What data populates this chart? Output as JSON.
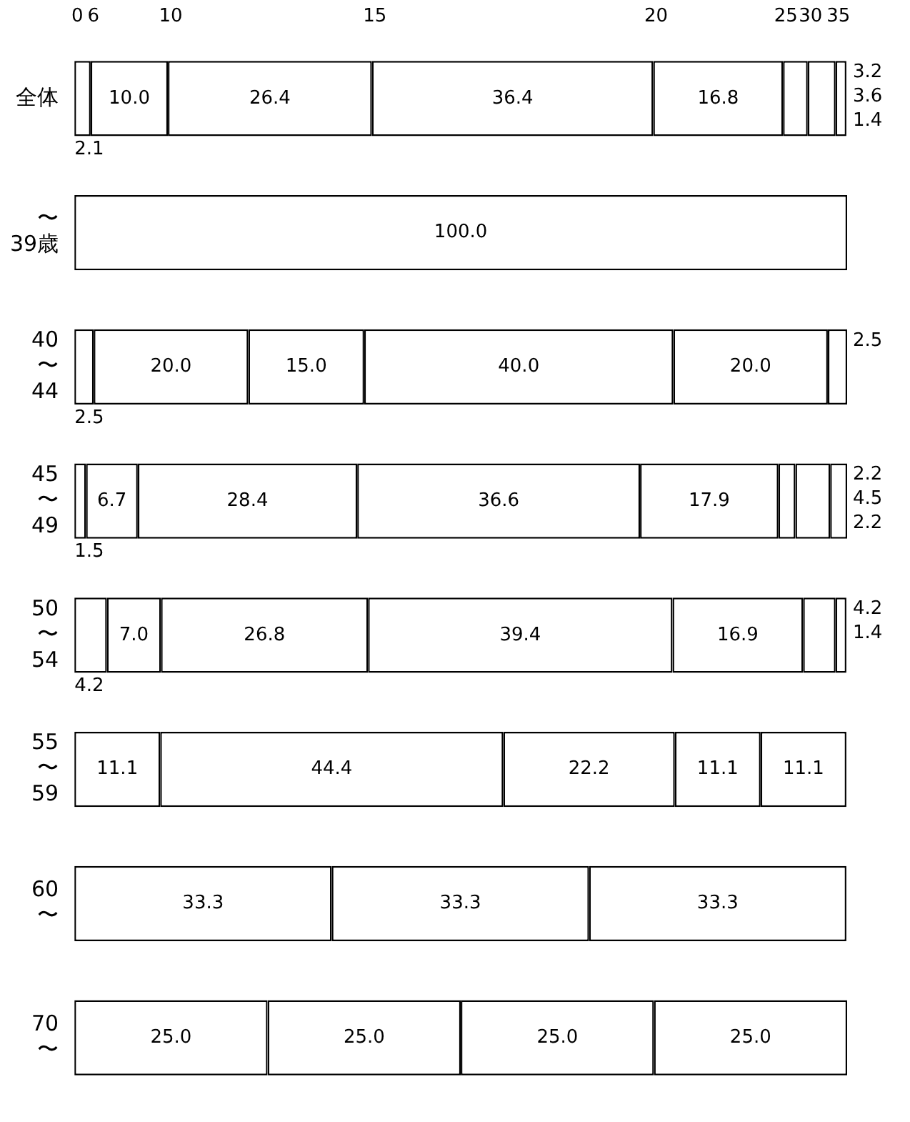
{
  "chart_data": {
    "type": "bar",
    "orientation": "horizontal",
    "stacked": true,
    "legend": "top",
    "tick_labels": "y",
    "xlim": [
      0,
      100
    ],
    "categories": [
      "全体",
      "〜39歳",
      "40〜44",
      "45〜49",
      "50〜54",
      "55〜59",
      "60〜",
      "70〜"
    ],
    "series": [
      {
        "name": "0",
        "color": "#ffffff",
        "values": [
          2.1,
          100,
          2.5,
          1.5,
          4.2,
          null,
          null,
          null
        ],
        "value_labels": [
          "2.1",
          "100.0",
          "2.5",
          "1.5",
          "4.2",
          null,
          null,
          null
        ]
      },
      {
        "name": "6",
        "color": "#ffffff",
        "values": [
          10,
          null,
          20,
          6.7,
          7,
          11.1,
          null,
          null
        ],
        "value_labels": [
          "10.0",
          null,
          "20.0",
          "6.7",
          "7.0",
          "11.1",
          null,
          null
        ]
      },
      {
        "name": "10",
        "color": "#ffffff",
        "values": [
          26.4,
          null,
          15,
          28.4,
          26.8,
          44.4,
          33.3,
          25
        ],
        "value_labels": [
          "26.4",
          null,
          "15.0",
          "28.4",
          "26.8",
          "44.4",
          "33.3",
          "25.0"
        ]
      },
      {
        "name": "15",
        "color": "#ffffff",
        "values": [
          36.4,
          null,
          40,
          36.6,
          39.4,
          22.2,
          33.3,
          25
        ],
        "value_labels": [
          "36.4",
          null,
          "40.0",
          "36.6",
          "39.4",
          "22.2",
          "33.3",
          "25.0"
        ]
      },
      {
        "name": "20",
        "color": "#ffffff",
        "values": [
          16.8,
          null,
          20,
          17.9,
          16.9,
          11.1,
          33.3,
          25
        ],
        "value_labels": [
          "16.8",
          null,
          "20.0",
          "17.9",
          "16.9",
          "11.1",
          "33.3",
          "25.0"
        ]
      },
      {
        "name": "25",
        "color": "#ffffff",
        "values": [
          3.2,
          null,
          2.5,
          2.2,
          4.2,
          11.1,
          null,
          25
        ],
        "value_labels": [
          "3.2",
          null,
          "2.5",
          "2.2",
          "4.2",
          "11.1",
          null,
          "25.0"
        ]
      },
      {
        "name": "30",
        "color": "#ffffff",
        "values": [
          3.6,
          null,
          null,
          4.5,
          1.4,
          null,
          null,
          null
        ],
        "value_labels": [
          "3.6",
          null,
          null,
          "4.5",
          "1.4",
          null,
          null,
          null
        ]
      },
      {
        "name": "35",
        "color": "#ffffff",
        "values": [
          1.4,
          null,
          null,
          2.2,
          null,
          null,
          null,
          null
        ],
        "value_labels": [
          "1.4",
          null,
          null,
          "2.2",
          null,
          null,
          null,
          null
        ]
      }
    ]
  }
}
